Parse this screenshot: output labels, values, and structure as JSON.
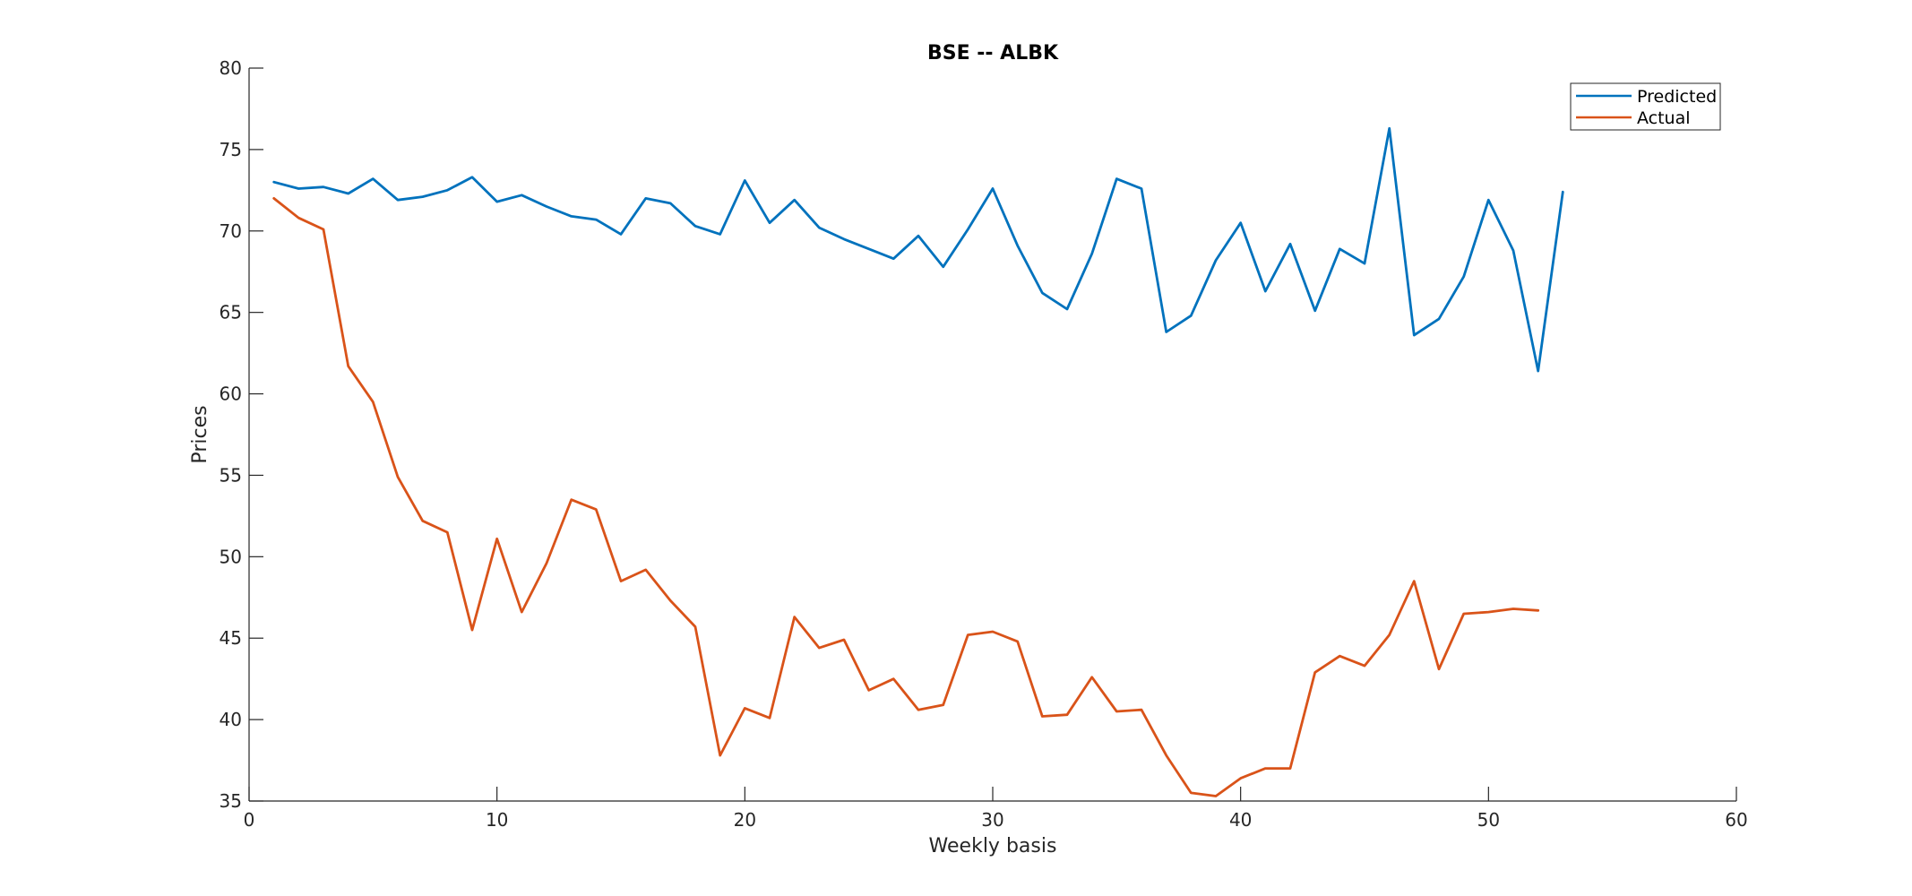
{
  "chart_data": {
    "type": "line",
    "title": "BSE -- ALBK",
    "xlabel": "Weekly basis",
    "ylabel": "Prices",
    "xlim": [
      0,
      60
    ],
    "ylim": [
      35,
      80
    ],
    "xticks": [
      0,
      10,
      20,
      30,
      40,
      50,
      60
    ],
    "yticks": [
      35,
      40,
      45,
      50,
      55,
      60,
      65,
      70,
      75,
      80
    ],
    "xtick_labels": [
      "0",
      "10",
      "20",
      "30",
      "40",
      "50",
      "60"
    ],
    "ytick_labels": [
      "35",
      "40",
      "45",
      "50",
      "55",
      "60",
      "65",
      "70",
      "75",
      "80"
    ],
    "grid": false,
    "legend_position": "top-right",
    "series": [
      {
        "name": "Predicted",
        "color": "#0072BD",
        "x": [
          1,
          2,
          3,
          4,
          5,
          6,
          7,
          8,
          9,
          10,
          11,
          12,
          13,
          14,
          15,
          16,
          17,
          18,
          19,
          20,
          21,
          22,
          23,
          24,
          25,
          26,
          27,
          28,
          29,
          30,
          31,
          32,
          33,
          34,
          35,
          36,
          37,
          38,
          39,
          40,
          41,
          42,
          43,
          44,
          45,
          46,
          47,
          48,
          49,
          50,
          51,
          52,
          53
        ],
        "y": [
          73.0,
          72.6,
          72.7,
          72.3,
          73.2,
          71.9,
          72.1,
          72.5,
          73.3,
          71.8,
          72.2,
          71.5,
          70.9,
          70.7,
          69.8,
          72.0,
          71.7,
          70.3,
          69.8,
          73.1,
          70.5,
          71.9,
          70.2,
          69.5,
          68.9,
          68.3,
          69.7,
          67.8,
          70.1,
          72.6,
          69.1,
          66.2,
          65.2,
          68.6,
          73.2,
          72.6,
          63.8,
          64.8,
          68.2,
          70.5,
          66.3,
          69.2,
          65.1,
          68.9,
          68.0,
          76.3,
          63.6,
          64.6,
          67.2,
          71.9,
          68.8,
          61.4,
          72.4
        ]
      },
      {
        "name": "Actual",
        "color": "#D95319",
        "x": [
          1,
          2,
          3,
          4,
          5,
          6,
          7,
          8,
          9,
          10,
          11,
          12,
          13,
          14,
          15,
          16,
          17,
          18,
          19,
          20,
          21,
          22,
          23,
          24,
          25,
          26,
          27,
          28,
          29,
          30,
          31,
          32,
          33,
          34,
          35,
          36,
          37,
          38,
          39,
          40,
          41,
          42,
          43,
          44,
          45,
          46,
          47,
          48,
          49,
          50,
          51,
          52
        ],
        "y": [
          72.0,
          70.8,
          70.1,
          61.7,
          59.5,
          54.9,
          52.2,
          51.5,
          45.5,
          51.1,
          46.6,
          49.6,
          53.5,
          52.9,
          48.5,
          49.2,
          47.3,
          45.7,
          37.8,
          40.7,
          40.1,
          46.3,
          44.4,
          44.9,
          41.8,
          42.5,
          40.6,
          40.9,
          45.2,
          45.4,
          44.8,
          40.2,
          40.3,
          42.6,
          40.5,
          40.6,
          37.8,
          35.5,
          35.3,
          36.4,
          37.0,
          37.0,
          42.9,
          43.9,
          43.3,
          45.2,
          48.5,
          43.1,
          46.5,
          46.6,
          46.8,
          46.7
        ]
      }
    ]
  }
}
